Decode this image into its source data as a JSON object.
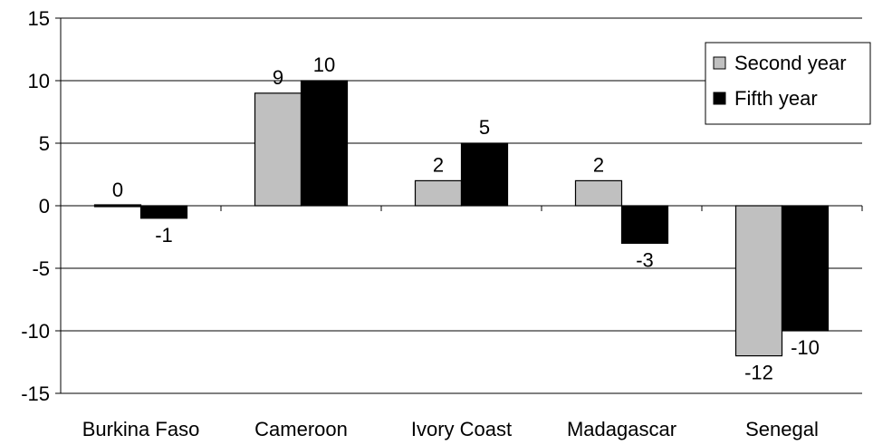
{
  "chart_data": {
    "type": "bar",
    "title": "",
    "xlabel": "",
    "ylabel": "",
    "categories": [
      "Burkina Faso",
      "Cameroon",
      "Ivory Coast",
      "Madagascar",
      "Senegal"
    ],
    "series": [
      {
        "name": "Second year",
        "values": [
          0,
          9,
          2,
          2,
          -12
        ],
        "data_labels": [
          "0",
          "9",
          "2",
          "2",
          "-12"
        ],
        "color": "#c0c0c0"
      },
      {
        "name": "Fifth year",
        "values": [
          -1,
          10,
          5,
          -3,
          -10
        ],
        "data_labels": [
          "-1",
          "10",
          "5",
          "-3",
          "-10"
        ],
        "color": "#000000"
      }
    ],
    "ylim": [
      -15,
      15
    ],
    "yticks": [
      15,
      10,
      5,
      0,
      -5,
      -10,
      -15
    ],
    "ytick_labels": [
      "15",
      "10",
      "5",
      "0",
      "-5",
      "-10",
      "-15"
    ],
    "grid": true,
    "legend_position": "top-right"
  }
}
